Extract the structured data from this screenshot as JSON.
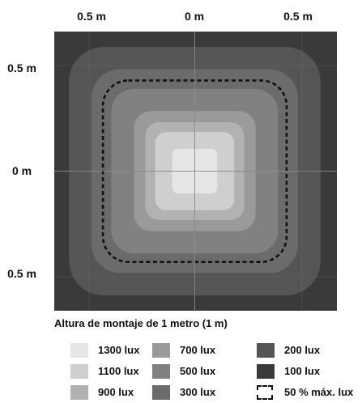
{
  "chart_data": {
    "type": "heatmap",
    "title": "",
    "x_tick_labels": [
      "0.5 m",
      "0 m",
      "0.5 m"
    ],
    "y_tick_labels": [
      "0.5 m",
      "0 m",
      "0.5 m"
    ],
    "caption": "Altura de montaje de 1 metro (1 m)",
    "unit": "lux",
    "levels": [
      {
        "lux": 1300,
        "label": "1300 lux",
        "color": "#e6e6e6",
        "half_extent_m": 0.16
      },
      {
        "lux": 1100,
        "label": "1100 lux",
        "color": "#cfcfcf",
        "half_extent_m": 0.28
      },
      {
        "lux": 900,
        "label": "900 lux",
        "color": "#b2b2b2",
        "half_extent_m": 0.35
      },
      {
        "lux": 700,
        "label": "700 lux",
        "color": "#9a9a9a",
        "half_extent_m": 0.43
      },
      {
        "lux": 500,
        "label": "500 lux",
        "color": "#818181",
        "half_extent_m": 0.59
      },
      {
        "lux": 300,
        "label": "300 lux",
        "color": "#6b6b6b",
        "half_extent_m": 0.73
      },
      {
        "lux": 200,
        "label": "200 lux",
        "color": "#555555",
        "half_extent_m": 0.89
      },
      {
        "lux": 100,
        "label": "100 lux",
        "color": "#3a3a3a",
        "half_extent_m": 1.0
      }
    ],
    "half_max_contour": {
      "label": "50 % máx. lux",
      "half_extent_m": 0.65
    },
    "extent_m": [
      -1.0,
      1.0
    ],
    "grid": true,
    "legend_placement": "bottom"
  }
}
